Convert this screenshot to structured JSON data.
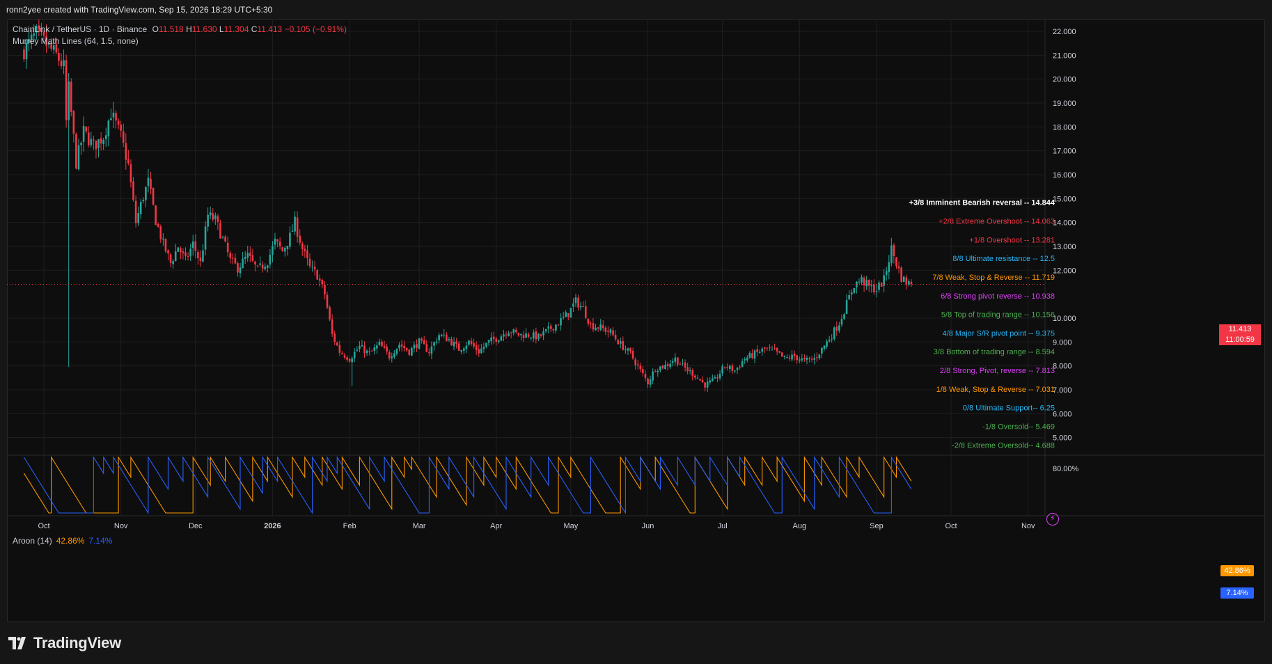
{
  "header": {
    "credit": "ronn2yee created with TradingView.com, Sep 15, 2026 18:29 UTC+5:30"
  },
  "legend": {
    "symbol": "ChainLink / TetherUS · 1D · Binance",
    "o_label": "O",
    "o": "11.518",
    "h_label": "H",
    "h": "11.630",
    "l_label": "L",
    "l": "11.304",
    "c_label": "C",
    "c": "11.413",
    "change": "−0.105 (−0.91%)",
    "indicator": "Murrey Math Lines (64, 1.5, none)",
    "aroon_label": "Aroon (14)",
    "aroon_up": "42.86%",
    "aroon_down": "7.14%"
  },
  "price_badge": {
    "price": "11.413",
    "countdown": "11:00:59"
  },
  "aroon_badges": {
    "up": "42.86%",
    "down": "7.14%"
  },
  "brand": {
    "name": "TradingView"
  },
  "colors": {
    "up": "#26a69a",
    "down": "#f23645",
    "aroon_up": "#ff9800",
    "aroon_down": "#2962ff",
    "accent": "#e040fb"
  },
  "chart_data": {
    "type": "candlestick",
    "symbol": "LINK/USDT",
    "interval": "1D",
    "ylim": [
      4.5,
      22.6
    ],
    "y_ticks": [
      "22.000",
      "21.000",
      "20.000",
      "19.000",
      "18.000",
      "17.000",
      "16.000",
      "15.000",
      "14.000",
      "13.000",
      "12.000",
      "10.000",
      "9.000",
      "8.000",
      "7.000",
      "6.000",
      "5.000"
    ],
    "x_labels": [
      "Oct",
      "Nov",
      "Dec",
      "2026",
      "Feb",
      "Mar",
      "Apr",
      "May",
      "Jun",
      "Jul",
      "Aug",
      "Sep",
      "Oct",
      "Nov"
    ],
    "x_label_days": [
      0,
      31,
      61,
      92,
      123,
      151,
      182,
      212,
      243,
      273,
      304,
      335,
      365,
      396
    ],
    "close_path": [
      [
        -8,
        21.2
      ],
      [
        -3,
        21.9
      ],
      [
        5,
        21.0
      ],
      [
        8,
        20.5
      ],
      [
        9,
        18.2
      ],
      [
        10,
        19.6
      ],
      [
        13,
        16.5
      ],
      [
        16,
        17.8
      ],
      [
        20,
        17.2
      ],
      [
        24,
        17.6
      ],
      [
        27,
        18.6
      ],
      [
        31,
        17.6
      ],
      [
        34,
        16.4
      ],
      [
        37,
        14.0
      ],
      [
        40,
        15.1
      ],
      [
        42,
        15.7
      ],
      [
        45,
        14.1
      ],
      [
        48,
        13.1
      ],
      [
        51,
        12.3
      ],
      [
        54,
        13.0
      ],
      [
        57,
        12.4
      ],
      [
        60,
        13.1
      ],
      [
        63,
        12.3
      ],
      [
        66,
        14.3
      ],
      [
        69,
        14.1
      ],
      [
        72,
        13.3
      ],
      [
        75,
        12.4
      ],
      [
        78,
        12.1
      ],
      [
        82,
        12.6
      ],
      [
        86,
        12.0
      ],
      [
        90,
        12.4
      ],
      [
        93,
        13.2
      ],
      [
        96,
        12.8
      ],
      [
        99,
        13.4
      ],
      [
        101,
        14.0
      ],
      [
        104,
        12.9
      ],
      [
        107,
        12.1
      ],
      [
        110,
        11.8
      ],
      [
        113,
        11.0
      ],
      [
        116,
        9.3
      ],
      [
        119,
        8.6
      ],
      [
        123,
        8.3
      ],
      [
        127,
        8.8
      ],
      [
        131,
        8.5
      ],
      [
        135,
        8.9
      ],
      [
        139,
        8.4
      ],
      [
        143,
        8.9
      ],
      [
        147,
        8.6
      ],
      [
        151,
        9.0
      ],
      [
        155,
        8.6
      ],
      [
        159,
        9.3
      ],
      [
        163,
        9.1
      ],
      [
        167,
        8.7
      ],
      [
        171,
        9.0
      ],
      [
        175,
        8.6
      ],
      [
        179,
        9.0
      ],
      [
        183,
        9.2
      ],
      [
        187,
        9.5
      ],
      [
        191,
        9.3
      ],
      [
        195,
        9.3
      ],
      [
        199,
        9.2
      ],
      [
        203,
        9.5
      ],
      [
        207,
        9.8
      ],
      [
        211,
        10.2
      ],
      [
        214,
        10.7
      ],
      [
        217,
        10.4
      ],
      [
        220,
        9.7
      ],
      [
        224,
        9.6
      ],
      [
        228,
        9.4
      ],
      [
        232,
        8.9
      ],
      [
        236,
        8.5
      ],
      [
        240,
        7.8
      ],
      [
        243,
        7.3
      ],
      [
        246,
        7.9
      ],
      [
        250,
        8.0
      ],
      [
        254,
        8.3
      ],
      [
        258,
        7.9
      ],
      [
        262,
        7.6
      ],
      [
        266,
        7.2
      ],
      [
        270,
        7.4
      ],
      [
        274,
        8.0
      ],
      [
        278,
        7.8
      ],
      [
        282,
        8.3
      ],
      [
        286,
        8.5
      ],
      [
        290,
        8.7
      ],
      [
        294,
        8.6
      ],
      [
        298,
        8.3
      ],
      [
        302,
        8.4
      ],
      [
        306,
        8.2
      ],
      [
        310,
        8.3
      ],
      [
        313,
        8.7
      ],
      [
        317,
        9.3
      ],
      [
        320,
        9.8
      ],
      [
        323,
        10.6
      ],
      [
        326,
        11.4
      ],
      [
        329,
        11.6
      ],
      [
        332,
        11.3
      ],
      [
        335,
        11.2
      ],
      [
        338,
        11.6
      ],
      [
        341,
        12.9
      ],
      [
        343,
        12.3
      ],
      [
        345,
        11.7
      ],
      [
        347,
        11.5
      ],
      [
        349,
        11.41
      ]
    ],
    "murrey_levels": [
      {
        "label": "+3/8 Imminent Bearish reversal --",
        "value": 14.844,
        "color": "#ffffff",
        "bold": true
      },
      {
        "label": "+2/8 Extreme Overshoot --",
        "value": 14.063,
        "color": "#f23645"
      },
      {
        "label": "+1/8 Overshoot --",
        "value": 13.281,
        "color": "#f23645"
      },
      {
        "label": "8/8 Ultimate resistance --",
        "value": 12.5,
        "color": "#29b6f6"
      },
      {
        "label": "7/8 Weak, Stop & Reverse --",
        "value": 11.719,
        "color": "#ff9800"
      },
      {
        "label": "6/8 Strong pivot reverse --",
        "value": 10.938,
        "color": "#e040fb"
      },
      {
        "label": "5/8 Top of trading range --",
        "value": 10.156,
        "color": "#4caf50"
      },
      {
        "label": "4/8 Major S/R pivot point --",
        "value": 9.375,
        "color": "#29b6f6"
      },
      {
        "label": "3/8 Bottom of trading range --",
        "value": 8.594,
        "color": "#4caf50"
      },
      {
        "label": "2/8 Strong, Pivot, reverse --",
        "value": 7.813,
        "color": "#e040fb"
      },
      {
        "label": "1/8 Weak, Stop & Reverse --",
        "value": 7.031,
        "color": "#ff9800"
      },
      {
        "label": "0/8 Ultimate Support--",
        "value": 6.25,
        "color": "#29b6f6"
      },
      {
        "label": "-1/8 Oversold--",
        "value": 5.469,
        "color": "#4caf50"
      },
      {
        "label": "-2/8 Extreme Oversold--",
        "value": 4.688,
        "color": "#4caf50"
      }
    ],
    "aroon": {
      "length": 14,
      "ylim": [
        0,
        100
      ],
      "y_ticks": [
        "80.00%"
      ],
      "up_last": 42.86,
      "down_last": 7.14,
      "up_peaks": [
        -12,
        3,
        30,
        35,
        60,
        67,
        73,
        84,
        90,
        100,
        105,
        112,
        120,
        127,
        140,
        145,
        148,
        158,
        170,
        177,
        182,
        190,
        207,
        212,
        232,
        240,
        246,
        262,
        275,
        282,
        289,
        295,
        306,
        313,
        323,
        328,
        338,
        343
      ],
      "down_peaks": [
        -8,
        20,
        24,
        28,
        42,
        50,
        56,
        66,
        79,
        88,
        94,
        108,
        114,
        118,
        131,
        137,
        155,
        163,
        173,
        186,
        196,
        203,
        220,
        234,
        240,
        248,
        255,
        262,
        268,
        275,
        280,
        297,
        310,
        320,
        341
      ]
    }
  }
}
